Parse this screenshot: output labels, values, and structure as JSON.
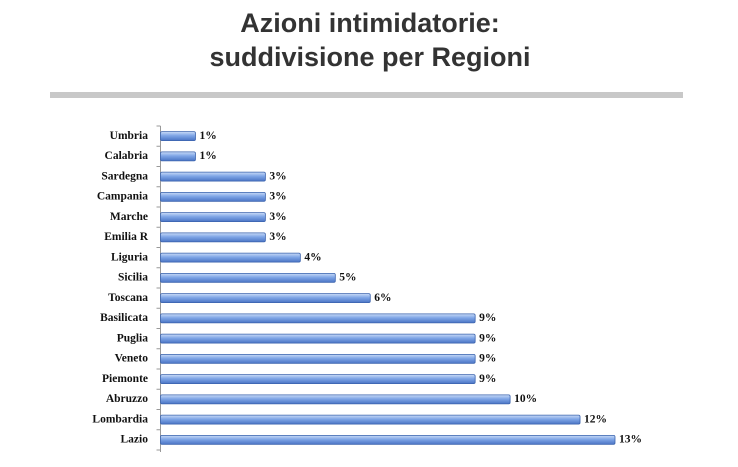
{
  "chart_data": {
    "type": "bar",
    "orientation": "horizontal",
    "title": [
      "Azioni intimidatorie:",
      "suddivisione per Regioni"
    ],
    "categories": [
      "Umbria",
      "Calabria",
      "Sardegna",
      "Campania",
      "Marche",
      "Emilia R",
      "Liguria",
      "Sicilia",
      "Toscana",
      "Basilicata",
      "Puglia",
      "Veneto",
      "Piemonte",
      "Abruzzo",
      "Lombardia",
      "Lazio"
    ],
    "values": [
      1,
      1,
      3,
      3,
      3,
      3,
      4,
      5,
      6,
      9,
      9,
      9,
      9,
      10,
      12,
      13
    ],
    "value_labels": [
      "1%",
      "1%",
      "3%",
      "3%",
      "3%",
      "3%",
      "4%",
      "5%",
      "6%",
      "9%",
      "9%",
      "9%",
      "9%",
      "10%",
      "12%",
      "13%"
    ],
    "color": "#6f97dc"
  }
}
